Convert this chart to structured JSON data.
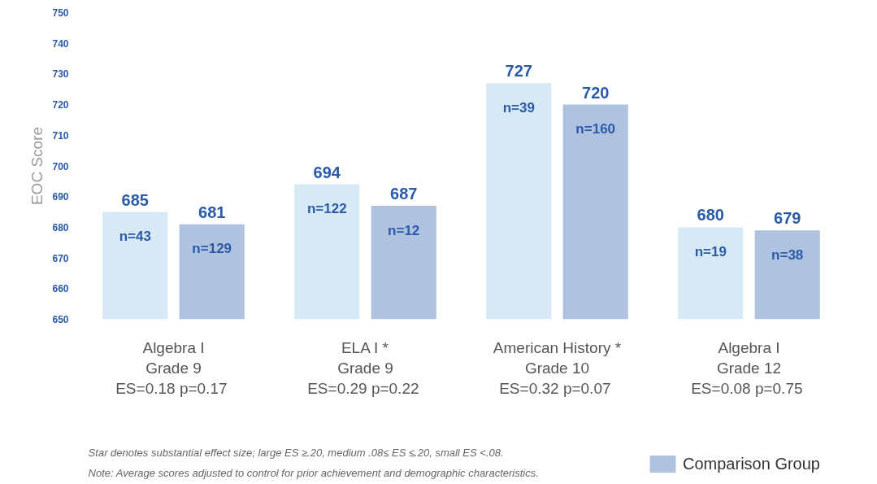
{
  "chart_data": {
    "type": "bar",
    "ylabel": "EOC Score",
    "categories": [
      "Algebra I\nGrade 9\nES=0.18  p=0.17",
      "ELA I *\nGrade 9\nES=0.29  p=0.22",
      "American History *\nGrade 10\nES=0.32  p=0.07",
      "Algebra I\nGrade 12\nES=0.08  p=0.75"
    ],
    "series": [
      {
        "color": "#d6e9f5",
        "values": [
          685,
          694,
          727,
          680
        ]
      },
      {
        "name": "Comparison Group",
        "color": "#afc3e0",
        "values": [
          681,
          687,
          720,
          679
        ]
      }
    ],
    "ylim": [
      650,
      750
    ],
    "yticks": [
      650,
      660,
      670,
      680,
      690,
      700,
      710,
      720,
      730,
      740,
      750
    ],
    "data_labels": true,
    "grid": false,
    "legend": "bottom right",
    "annotations": [
      "n=43",
      "n=129",
      "n=122",
      "n=12",
      "n=39",
      "n=160",
      "n=19",
      "n=38",
      "Star denotes substantial effect size; large ES ≥.20, medium .08≤ ES ≤.20, small ES <.08.",
      "Note: Average scores adjusted to control for prior achievement and demographic characteristics."
    ]
  }
}
